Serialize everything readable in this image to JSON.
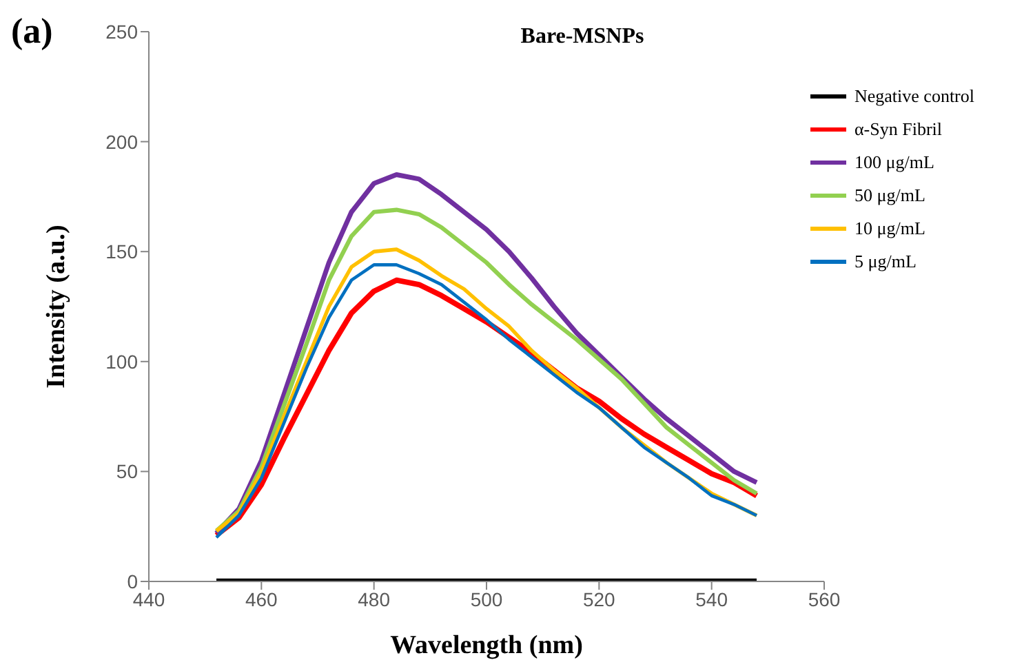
{
  "chart_data": {
    "type": "line",
    "title": "Bare-MSNPs",
    "xlabel": "Wavelength (nm)",
    "ylabel": "Intensity (a.u.)",
    "annotations": [
      "(a)"
    ],
    "x": [
      452,
      456,
      460,
      464,
      468,
      472,
      476,
      480,
      484,
      488,
      492,
      496,
      500,
      504,
      508,
      512,
      516,
      520,
      524,
      528,
      532,
      536,
      540,
      544,
      548
    ],
    "xlim": [
      440,
      560
    ],
    "xticks": [
      440,
      460,
      480,
      500,
      520,
      540,
      560
    ],
    "ylim": [
      0,
      250
    ],
    "yticks": [
      0,
      50,
      100,
      150,
      200,
      250
    ],
    "grid": false,
    "legend": "top right",
    "marker": "none",
    "line_style": "solid",
    "series": [
      {
        "name": "Negative control",
        "color": "#000000",
        "values": [
          0,
          0,
          0,
          0,
          0,
          0,
          0,
          0,
          0,
          0,
          0,
          0,
          0,
          0,
          0,
          0,
          0,
          0,
          0,
          0,
          0,
          0,
          0,
          0,
          0
        ]
      },
      {
        "name": "α-Syn Fibril",
        "color": "#ff0000",
        "values": [
          21,
          29,
          44,
          65,
          85,
          105,
          122,
          132,
          137,
          135,
          130,
          124,
          118,
          111,
          104,
          96,
          88,
          82,
          74,
          67,
          61,
          55,
          49,
          45,
          39
        ]
      },
      {
        "name": "100 μg/mL",
        "color": "#7030a0",
        "values": [
          22,
          33,
          55,
          85,
          115,
          145,
          168,
          181,
          185,
          183,
          176,
          168,
          160,
          150,
          138,
          125,
          113,
          103,
          93,
          83,
          74,
          66,
          58,
          50,
          45
        ]
      },
      {
        "name": "50 μg/mL",
        "color": "#92d050",
        "values": [
          23,
          32,
          52,
          80,
          108,
          137,
          157,
          168,
          169,
          167,
          161,
          153,
          145,
          135,
          126,
          118,
          110,
          101,
          92,
          81,
          70,
          62,
          54,
          46,
          40
        ]
      },
      {
        "name": "10 μg/mL",
        "color": "#ffc000",
        "values": [
          23,
          31,
          50,
          75,
          100,
          125,
          143,
          150,
          151,
          146,
          139,
          133,
          124,
          116,
          105,
          96,
          88,
          79,
          70,
          62,
          54,
          47,
          40,
          35,
          30
        ]
      },
      {
        "name": "5 μg/mL",
        "color": "#0070c0",
        "values": [
          20,
          30,
          47,
          72,
          97,
          120,
          137,
          144,
          144,
          140,
          135,
          127,
          119,
          110,
          102,
          94,
          86,
          79,
          70,
          61,
          54,
          47,
          39,
          35,
          30
        ]
      }
    ]
  }
}
